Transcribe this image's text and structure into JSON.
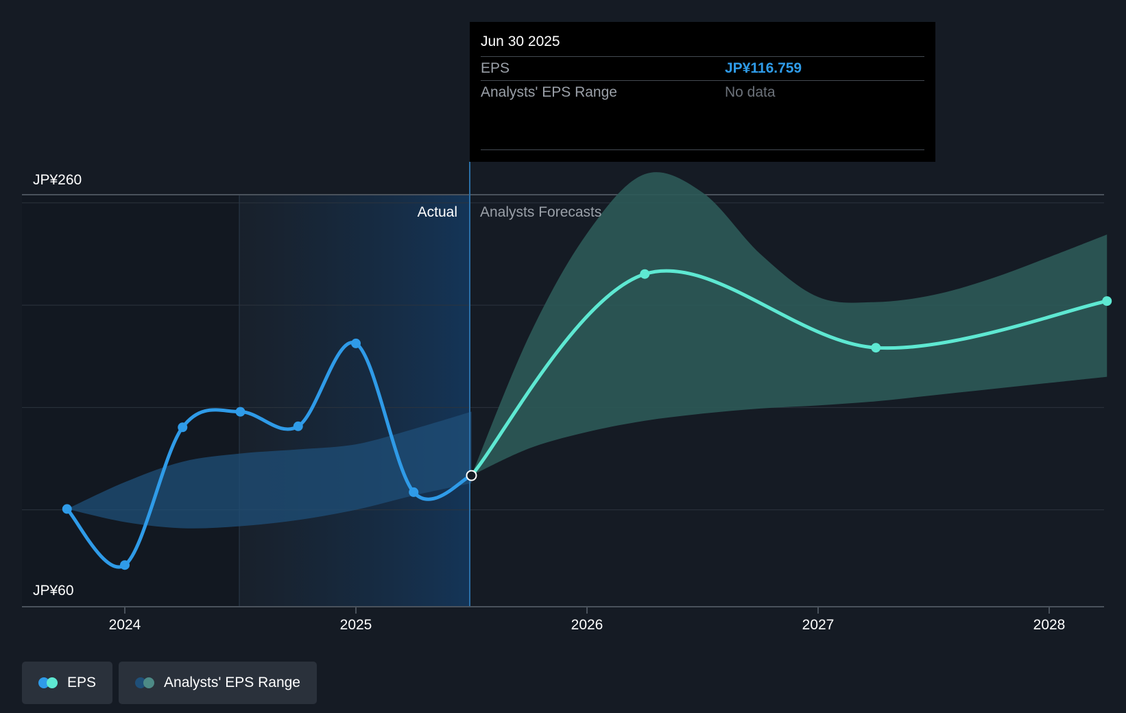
{
  "chart_data": {
    "type": "line",
    "title": "",
    "xlabel": "",
    "ylabel": "",
    "ylim": [
      60,
      260
    ],
    "y_axis_labels": [
      "JP¥260",
      "JP¥60"
    ],
    "x_ticks": [
      "2024",
      "2025",
      "2026",
      "2027",
      "2028"
    ],
    "region_labels": {
      "actual": "Actual",
      "forecast": "Analysts Forecasts"
    },
    "series": [
      {
        "name": "EPS",
        "kind": "actual",
        "points": [
          {
            "x": 2023.75,
            "y": 100.4
          },
          {
            "x": 2024.0,
            "y": 73.0
          },
          {
            "x": 2024.25,
            "y": 140.3
          },
          {
            "x": 2024.5,
            "y": 147.9
          },
          {
            "x": 2024.75,
            "y": 140.8
          },
          {
            "x": 2025.0,
            "y": 181.3
          },
          {
            "x": 2025.25,
            "y": 108.6
          },
          {
            "x": 2025.5,
            "y": 116.759
          }
        ]
      },
      {
        "name": "EPS",
        "kind": "forecast",
        "points": [
          {
            "x": 2025.5,
            "y": 116.759
          },
          {
            "x": 2026.25,
            "y": 215.2
          },
          {
            "x": 2027.25,
            "y": 179.2
          },
          {
            "x": 2028.25,
            "y": 202.0
          }
        ]
      },
      {
        "name": "Analysts' EPS Range",
        "kind": "actual",
        "points": [
          {
            "x": 2023.75,
            "y_low": 100.4,
            "y_high": 100.4
          },
          {
            "x": 2024.0,
            "y_low": 94.0,
            "y_high": 113.5
          },
          {
            "x": 2024.25,
            "y_low": 91.0,
            "y_high": 123.5
          },
          {
            "x": 2024.5,
            "y_low": 92.0,
            "y_high": 127.5
          },
          {
            "x": 2024.75,
            "y_low": 95.0,
            "y_high": 129.5
          },
          {
            "x": 2025.0,
            "y_low": 100.0,
            "y_high": 132.0
          },
          {
            "x": 2025.25,
            "y_low": 107.0,
            "y_high": 139.5
          },
          {
            "x": 2025.5,
            "y_low": 113.0,
            "y_high": 148.0
          }
        ]
      },
      {
        "name": "Analysts' EPS Range",
        "kind": "forecast",
        "points": [
          {
            "x": 2025.5,
            "y_low": 116.759,
            "y_high": 116.759
          },
          {
            "x": 2025.75,
            "y_low": 130.0,
            "y_high": 185.0
          },
          {
            "x": 2026.0,
            "y_low": 138.0,
            "y_high": 235.0
          },
          {
            "x": 2026.25,
            "y_low": 143.5,
            "y_high": 264.0
          },
          {
            "x": 2026.5,
            "y_low": 147.0,
            "y_high": 255.0
          },
          {
            "x": 2026.75,
            "y_low": 149.5,
            "y_high": 225.0
          },
          {
            "x": 2027.0,
            "y_low": 151.0,
            "y_high": 204.0
          },
          {
            "x": 2027.25,
            "y_low": 153.0,
            "y_high": 201.5
          },
          {
            "x": 2027.5,
            "y_low": 156.0,
            "y_high": 205.0
          },
          {
            "x": 2027.75,
            "y_low": 159.0,
            "y_high": 213.0
          },
          {
            "x": 2028.0,
            "y_low": 162.0,
            "y_high": 223.5
          },
          {
            "x": 2028.25,
            "y_low": 165.0,
            "y_high": 234.5
          }
        ]
      }
    ],
    "legend": [
      "EPS",
      "Analysts' EPS Range"
    ],
    "grid": true
  },
  "tooltip": {
    "date": "Jun 30 2025",
    "rows": [
      {
        "label": "EPS",
        "value": "JP¥116.759"
      },
      {
        "label": "Analysts' EPS Range",
        "value": "No data"
      }
    ]
  },
  "colors": {
    "background": "#151b24",
    "actual_eps": "#2f9be8",
    "forecast_eps": "#5ee8d2",
    "actual_range": "#1f4f78",
    "forecast_range": "#2c5a58"
  }
}
